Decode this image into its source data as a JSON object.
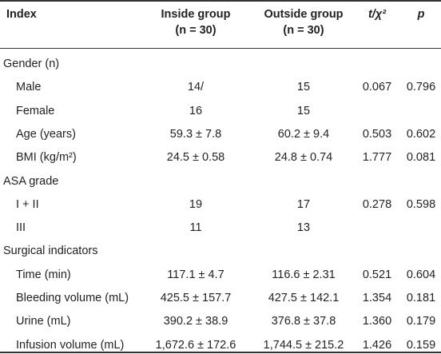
{
  "header": {
    "index": "Index",
    "inside_line1": "Inside group",
    "inside_line2": "(n = 30)",
    "outside_line1": "Outside group",
    "outside_line2": "(n = 30)",
    "stat": "t/χ²",
    "p": "p"
  },
  "rows": [
    {
      "label": "Gender (n)",
      "section": true
    },
    {
      "label": "Male",
      "inside": "14/",
      "outside": "15",
      "stat": "0.067",
      "p": "0.796"
    },
    {
      "label": "Female",
      "inside": "16",
      "outside": "15",
      "stat": "",
      "p": ""
    },
    {
      "label": "Age (years)",
      "inside": "59.3 ± 7.8",
      "outside": "60.2 ± 9.4",
      "stat": "0.503",
      "p": "0.602"
    },
    {
      "label": "BMI (kg/m²)",
      "inside": "24.5 ± 0.58",
      "outside": "24.8 ± 0.74",
      "stat": "1.777",
      "p": "0.081"
    },
    {
      "label": "ASA grade",
      "section": true
    },
    {
      "label": "I + II",
      "inside": "19",
      "outside": "17",
      "stat": "0.278",
      "p": "0.598"
    },
    {
      "label": "III",
      "inside": "11",
      "outside": "13",
      "stat": "",
      "p": ""
    },
    {
      "label": "Surgical indicators",
      "section": true
    },
    {
      "label": "Time (min)",
      "inside": "117.1 ± 4.7",
      "outside": "116.6 ± 2.31",
      "stat": "0.521",
      "p": "0.604"
    },
    {
      "label": "Bleeding volume (mL)",
      "inside": "425.5 ± 157.7",
      "outside": "427.5 ± 142.1",
      "stat": "1.354",
      "p": "0.181"
    },
    {
      "label": "Urine (mL)",
      "inside": "390.2 ± 38.9",
      "outside": "376.8 ± 37.8",
      "stat": "1.360",
      "p": "0.179"
    },
    {
      "label": "Infusion volume (mL)",
      "inside": "1,672.6 ± 172.6",
      "outside": "1,744.5 ± 215.2",
      "stat": "1.426",
      "p": "0.159"
    }
  ]
}
